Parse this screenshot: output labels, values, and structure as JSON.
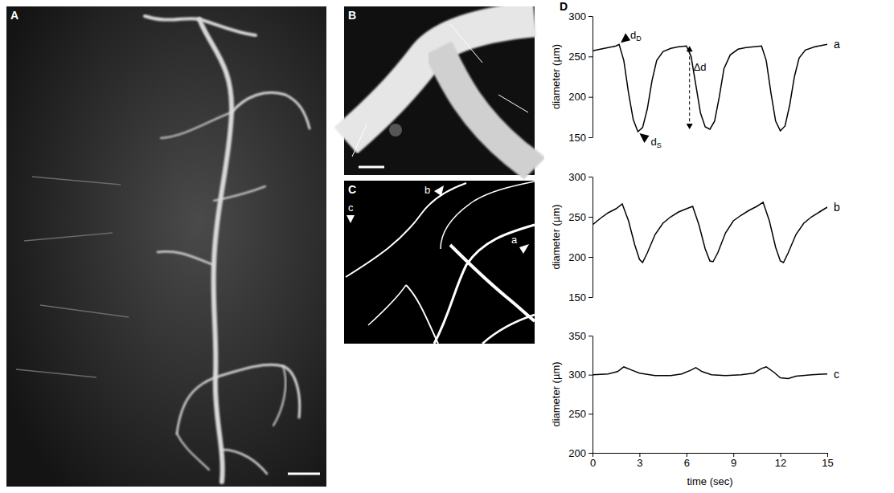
{
  "figure": {
    "panel_letters": [
      "A",
      "B",
      "C",
      "D"
    ],
    "vessel_labels": [
      "a",
      "b",
      "c"
    ]
  },
  "chart_data": [
    {
      "type": "line",
      "title": "a",
      "ylabel": "diameter (µm)",
      "color": "#000000",
      "tick_labels": "y",
      "xlim": [
        0,
        15
      ],
      "ylim": [
        150,
        300
      ],
      "yticks": [
        150,
        200,
        250,
        300
      ],
      "x": [
        0,
        0.5,
        1.0,
        1.5,
        1.7,
        2.0,
        2.3,
        2.6,
        2.9,
        3.2,
        3.5,
        3.8,
        4.1,
        4.5,
        5.0,
        5.5,
        6.0,
        6.3,
        6.6,
        6.9,
        7.2,
        7.5,
        7.8,
        8.1,
        8.4,
        8.8,
        9.3,
        9.8,
        10.3,
        10.8,
        11.1,
        11.4,
        11.7,
        12.0,
        12.3,
        12.6,
        12.9,
        13.2,
        13.6,
        14.2,
        15.0
      ],
      "values": [
        257,
        259,
        261,
        263,
        265,
        245,
        205,
        172,
        157,
        162,
        185,
        220,
        245,
        256,
        260,
        262,
        263,
        250,
        215,
        180,
        163,
        160,
        170,
        200,
        235,
        252,
        259,
        261,
        262,
        263,
        245,
        205,
        170,
        158,
        164,
        190,
        225,
        248,
        258,
        262,
        265
      ],
      "annotations": [
        {
          "label": "d",
          "subscript": "D",
          "x": 1.7,
          "y": 265
        },
        {
          "label": "d",
          "subscript": "S",
          "x": 2.9,
          "y": 157
        },
        {
          "label": "Δd",
          "x": 6.2,
          "y_from": 263,
          "y_to": 160
        }
      ]
    },
    {
      "type": "line",
      "title": "b",
      "ylabel": "diameter (µm)",
      "color": "#000000",
      "tick_labels": "y",
      "xlim": [
        0,
        15
      ],
      "ylim": [
        150,
        300
      ],
      "yticks": [
        150,
        200,
        250,
        300
      ],
      "x": [
        0,
        0.5,
        1.0,
        1.5,
        1.9,
        2.3,
        2.7,
        3.0,
        3.2,
        3.5,
        4.0,
        4.5,
        5.0,
        5.5,
        6.0,
        6.4,
        6.8,
        7.2,
        7.5,
        7.7,
        8.0,
        8.5,
        9.0,
        9.5,
        10.0,
        10.5,
        10.9,
        11.3,
        11.7,
        12.0,
        12.2,
        12.5,
        13.0,
        13.5,
        14.0,
        14.5,
        15.0
      ],
      "values": [
        240,
        248,
        255,
        260,
        266,
        245,
        215,
        197,
        193,
        205,
        228,
        242,
        250,
        256,
        260,
        263,
        240,
        210,
        195,
        194,
        205,
        230,
        245,
        252,
        258,
        263,
        268,
        245,
        212,
        195,
        193,
        205,
        228,
        242,
        250,
        256,
        262
      ]
    },
    {
      "type": "line",
      "title": "c",
      "ylabel": "diameter (µm)",
      "xlabel": "time (sec)",
      "color": "#000000",
      "tick_labels": true,
      "xlim": [
        0,
        15
      ],
      "ylim": [
        200,
        350
      ],
      "yticks": [
        200,
        250,
        300,
        350
      ],
      "xticks": [
        0,
        3,
        6,
        9,
        12,
        15
      ],
      "x": [
        0,
        1.0,
        1.6,
        2.0,
        2.5,
        3.0,
        4.0,
        5.0,
        5.7,
        6.3,
        6.6,
        7.0,
        7.6,
        8.5,
        9.5,
        10.3,
        10.8,
        11.1,
        11.6,
        12.0,
        12.5,
        13.0,
        14.0,
        15.0
      ],
      "values": [
        300,
        301,
        304,
        310,
        306,
        302,
        299,
        299,
        301,
        306,
        309,
        304,
        300,
        299,
        300,
        302,
        308,
        310,
        303,
        296,
        295,
        298,
        300,
        301
      ]
    }
  ]
}
